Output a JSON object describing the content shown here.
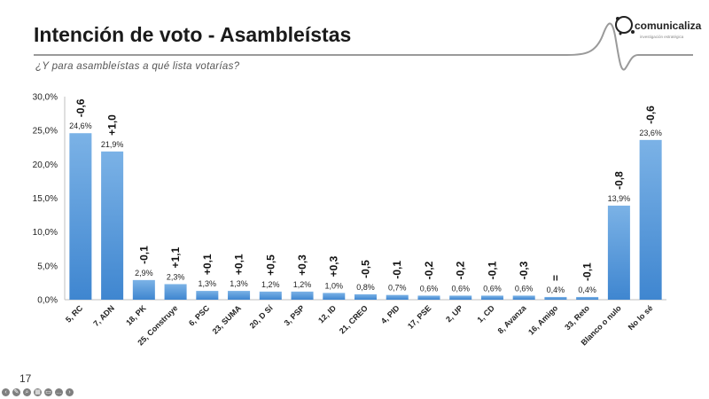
{
  "header": {
    "title": "Intención de voto - Asambleístas",
    "subtitle": "¿Y para asambleístas a qué lista votarías?",
    "logo_text": "comunicaliza",
    "logo_sub": "investigación estratégica"
  },
  "footer": {
    "page_number": "17"
  },
  "colors": {
    "bar": "#4a8fd6",
    "bar_light": "#7bb2e6",
    "rule": "#9a9a9a"
  },
  "chart_data": {
    "type": "bar",
    "title": "",
    "xlabel": "",
    "ylabel": "",
    "ylim": [
      0,
      30
    ],
    "yticks": [
      "0,0%",
      "5,0%",
      "10,0%",
      "15,0%",
      "20,0%",
      "25,0%",
      "30,0%"
    ],
    "ytick_values": [
      0,
      5,
      10,
      15,
      20,
      25,
      30
    ],
    "grid": false,
    "categories": [
      "5, RC",
      "7, ADN",
      "18, PK",
      "25, Construye",
      "6, PSC",
      "23, SUMA",
      "20, D Sí",
      "3, PSP",
      "12, ID",
      "21, CREO",
      "4, PID",
      "17, PSE",
      "2, UP",
      "1, CD",
      "8, Avanza",
      "16, Amigo",
      "33, Reto",
      "Blanco o nulo",
      "No lo sé"
    ],
    "values": [
      24.6,
      21.9,
      2.9,
      2.3,
      1.3,
      1.3,
      1.2,
      1.2,
      1.0,
      0.8,
      0.7,
      0.6,
      0.6,
      0.6,
      0.6,
      0.4,
      0.4,
      13.9,
      23.6
    ],
    "value_labels": [
      "24,6%",
      "21,9%",
      "2,9%",
      "2,3%",
      "1,3%",
      "1,3%",
      "1,2%",
      "1,2%",
      "1,0%",
      "0,8%",
      "0,7%",
      "0,6%",
      "0,6%",
      "0,6%",
      "0,6%",
      "0,4%",
      "0,4%",
      "13,9%",
      "23,6%"
    ],
    "change_labels": [
      "-0,6",
      "+1,0",
      "-0,1",
      "+1,1",
      "+0,1",
      "+0,1",
      "+0,5",
      "+0,3",
      "+0,3",
      "-0,5",
      "-0,1",
      "-0,2",
      "-0,2",
      "-0,1",
      "-0,3",
      "=",
      "-0,1",
      "-0,8",
      "-0,6"
    ]
  }
}
